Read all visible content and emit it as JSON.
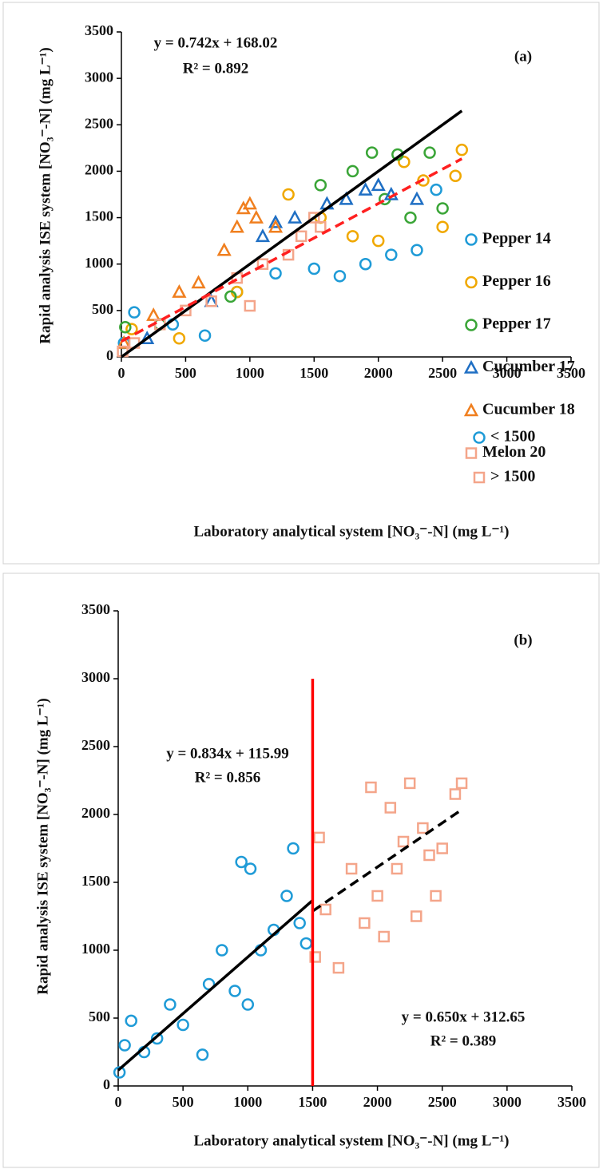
{
  "chart_data": [
    {
      "type": "scatter",
      "panel_label": "(a)",
      "xlabel": "Laboratory analytical system [NO₃⁻-N] (mg L⁻¹)",
      "ylabel": "Rapid analysis ISE system [NO₃⁻-N] (mg L⁻¹)",
      "annotations": [
        "y = 0.742x + 168.02",
        "R² = 0.892"
      ],
      "xlim": [
        0,
        3500
      ],
      "ylim": [
        0,
        3500
      ],
      "xticks": [
        0,
        500,
        1000,
        1500,
        2000,
        2500,
        3000,
        3500
      ],
      "yticks": [
        0,
        500,
        1000,
        1500,
        2000,
        2500,
        3000,
        3500
      ],
      "series": [
        {
          "name": "Pepper 14",
          "color": "#1f9bd7",
          "marker": "circle",
          "x": [
            20,
            100,
            400,
            650,
            900,
            1200,
            1500,
            1700,
            1900,
            2100,
            2300,
            2450
          ],
          "y": [
            150,
            480,
            350,
            230,
            700,
            900,
            950,
            870,
            1000,
            1100,
            1150,
            1800
          ]
        },
        {
          "name": "Pepper 16",
          "color": "#f0a800",
          "marker": "circle",
          "x": [
            80,
            450,
            900,
            1300,
            1550,
            1800,
            2000,
            2200,
            2350,
            2500,
            2600,
            2650
          ],
          "y": [
            300,
            200,
            700,
            1750,
            1500,
            1300,
            1250,
            2100,
            1900,
            1400,
            1950,
            2230
          ]
        },
        {
          "name": "Pepper 17",
          "color": "#3aa537",
          "marker": "circle",
          "x": [
            30,
            300,
            850,
            1550,
            1800,
            1950,
            2050,
            2150,
            2250,
            2400,
            2500
          ],
          "y": [
            320,
            350,
            650,
            1850,
            2000,
            2200,
            1700,
            2180,
            1500,
            2200,
            1600
          ]
        },
        {
          "name": "Cucumber 17",
          "color": "#1f6fc4",
          "marker": "triangle",
          "x": [
            200,
            700,
            1100,
            1200,
            1350,
            1600,
            1750,
            1900,
            2000,
            2100,
            2300
          ],
          "y": [
            200,
            600,
            1300,
            1450,
            1500,
            1650,
            1700,
            1800,
            1850,
            1750,
            1700
          ]
        },
        {
          "name": "Cucumber 18",
          "color": "#f07f1f",
          "marker": "triangle",
          "x": [
            20,
            250,
            450,
            600,
            800,
            900,
            950,
            1000,
            1050,
            1200
          ],
          "y": [
            150,
            450,
            700,
            800,
            1150,
            1400,
            1600,
            1650,
            1500,
            1400
          ]
        },
        {
          "name": "Melon 20",
          "color": "#f4a58a",
          "marker": "square",
          "x": [
            10,
            100,
            300,
            500,
            700,
            900,
            1000,
            1100,
            1300,
            1400,
            1500,
            1550
          ],
          "y": [
            60,
            150,
            350,
            500,
            600,
            850,
            550,
            1000,
            1100,
            1300,
            1500,
            1400
          ]
        }
      ],
      "lines": [
        {
          "x": [
            0,
            2650
          ],
          "y": [
            0,
            2650
          ],
          "color": "#000000",
          "dashed": false
        },
        {
          "x": [
            0,
            2650
          ],
          "y": [
            168,
            2134
          ],
          "color": "#ff2020",
          "dashed": true
        }
      ]
    },
    {
      "type": "scatter",
      "panel_label": "(b)",
      "xlabel": "Laboratory analytical system [NO₃⁻-N] (mg L⁻¹)",
      "ylabel": "Rapid analysis ISE system [NO₃⁻-N] (mg L⁻¹)",
      "annotations": [
        "y = 0.834x + 115.99",
        "R² = 0.856",
        "y = 0.650x + 312.65",
        "R² = 0.389"
      ],
      "xlim": [
        0,
        3500
      ],
      "ylim": [
        0,
        3500
      ],
      "xticks": [
        0,
        500,
        1000,
        1500,
        2000,
        2500,
        3000,
        3500
      ],
      "yticks": [
        0,
        500,
        1000,
        1500,
        2000,
        2500,
        3000,
        3500
      ],
      "series": [
        {
          "name": "< 1500",
          "color": "#1f9bd7",
          "marker": "circle",
          "x": [
            10,
            50,
            100,
            200,
            300,
            400,
            500,
            650,
            700,
            800,
            900,
            950,
            1000,
            1020,
            1100,
            1200,
            1300,
            1350,
            1400,
            1450
          ],
          "y": [
            100,
            300,
            480,
            250,
            350,
            600,
            450,
            230,
            750,
            1000,
            700,
            1650,
            600,
            1600,
            1000,
            1150,
            1400,
            1750,
            1200,
            1050
          ]
        },
        {
          "name": "> 1500",
          "color": "#f4a58a",
          "marker": "square",
          "x": [
            1520,
            1550,
            1600,
            1700,
            1800,
            1900,
            1950,
            2000,
            2050,
            2100,
            2150,
            2200,
            2250,
            2300,
            2350,
            2400,
            2450,
            2500,
            2600,
            2650
          ],
          "y": [
            950,
            1830,
            1300,
            870,
            1600,
            1200,
            2200,
            1400,
            1100,
            2050,
            1600,
            1800,
            2230,
            1250,
            1900,
            1700,
            1400,
            1750,
            2150,
            2230
          ]
        }
      ],
      "lines": [
        {
          "x": [
            0,
            1500
          ],
          "y": [
            116,
            1367
          ],
          "color": "#000000",
          "dashed": false
        },
        {
          "x": [
            1500,
            2650
          ],
          "y": [
            1288,
            2035
          ],
          "color": "#000000",
          "dashed": true
        },
        {
          "x": [
            1500,
            1500
          ],
          "y": [
            0,
            3000
          ],
          "color": "#ff0000",
          "dashed": false
        }
      ]
    }
  ]
}
